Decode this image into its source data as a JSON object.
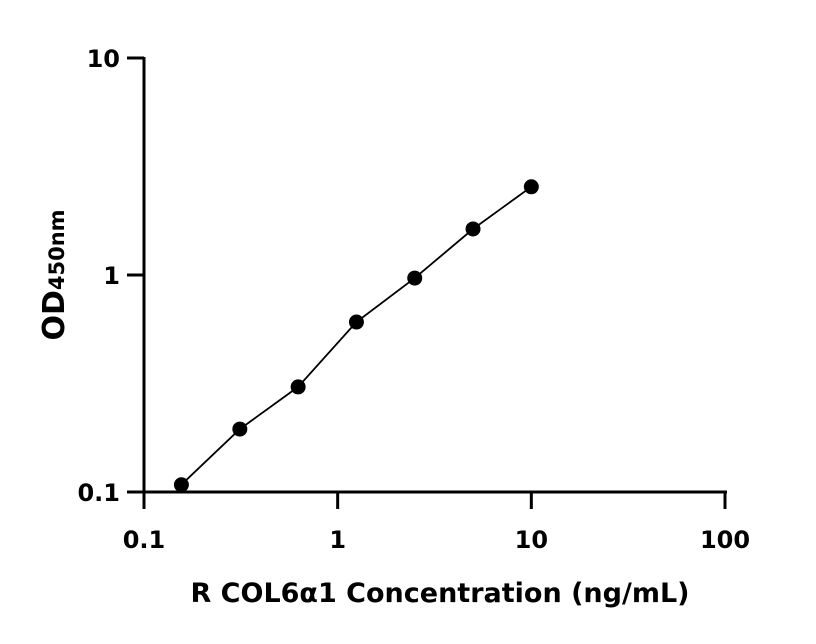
{
  "chart_data": {
    "type": "scatter",
    "title": "",
    "xlabel": "R COL6α1 Concentration (ng/mL)",
    "ylabel_main": "OD",
    "ylabel_sub": "450nm",
    "x_scale": "log",
    "y_scale": "log",
    "xlim": [
      0.1,
      100
    ],
    "ylim": [
      0.1,
      10
    ],
    "x_ticks": [
      0.1,
      1,
      10,
      100
    ],
    "x_tick_labels": [
      "0.1",
      "1",
      "10",
      "100"
    ],
    "y_ticks": [
      0.1,
      1,
      10
    ],
    "y_tick_labels": [
      "0.1",
      "1",
      "10"
    ],
    "grid": false,
    "fit_line": true,
    "series": [
      {
        "x": [
          0.156,
          0.3125,
          0.625,
          1.25,
          2.5,
          5,
          10
        ],
        "y": [
          0.108,
          0.195,
          0.305,
          0.607,
          0.968,
          1.63,
          2.55
        ],
        "color": "#000000"
      }
    ]
  }
}
